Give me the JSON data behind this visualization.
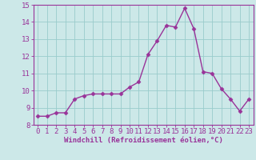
{
  "x": [
    0,
    1,
    2,
    3,
    4,
    5,
    6,
    7,
    8,
    9,
    10,
    11,
    12,
    13,
    14,
    15,
    16,
    17,
    18,
    19,
    20,
    21,
    22,
    23
  ],
  "y": [
    8.5,
    8.5,
    8.7,
    8.7,
    9.5,
    9.7,
    9.8,
    9.8,
    9.8,
    9.8,
    10.2,
    10.5,
    12.1,
    12.9,
    13.8,
    13.7,
    14.8,
    13.6,
    11.1,
    11.0,
    10.1,
    9.5,
    8.8,
    9.5
  ],
  "line_color": "#993399",
  "marker": "D",
  "markersize": 2.5,
  "linewidth": 1.0,
  "bg_color": "#cce8e8",
  "grid_color": "#99cccc",
  "tick_color": "#993399",
  "label_color": "#993399",
  "xlabel": "Windchill (Refroidissement éolien,°C)",
  "xlim": [
    -0.5,
    23.5
  ],
  "ylim": [
    8,
    15
  ],
  "yticks": [
    8,
    9,
    10,
    11,
    12,
    13,
    14,
    15
  ],
  "xticks": [
    0,
    1,
    2,
    3,
    4,
    5,
    6,
    7,
    8,
    9,
    10,
    11,
    12,
    13,
    14,
    15,
    16,
    17,
    18,
    19,
    20,
    21,
    22,
    23
  ],
  "font_size": 6.5,
  "xlabel_fontsize": 6.5
}
